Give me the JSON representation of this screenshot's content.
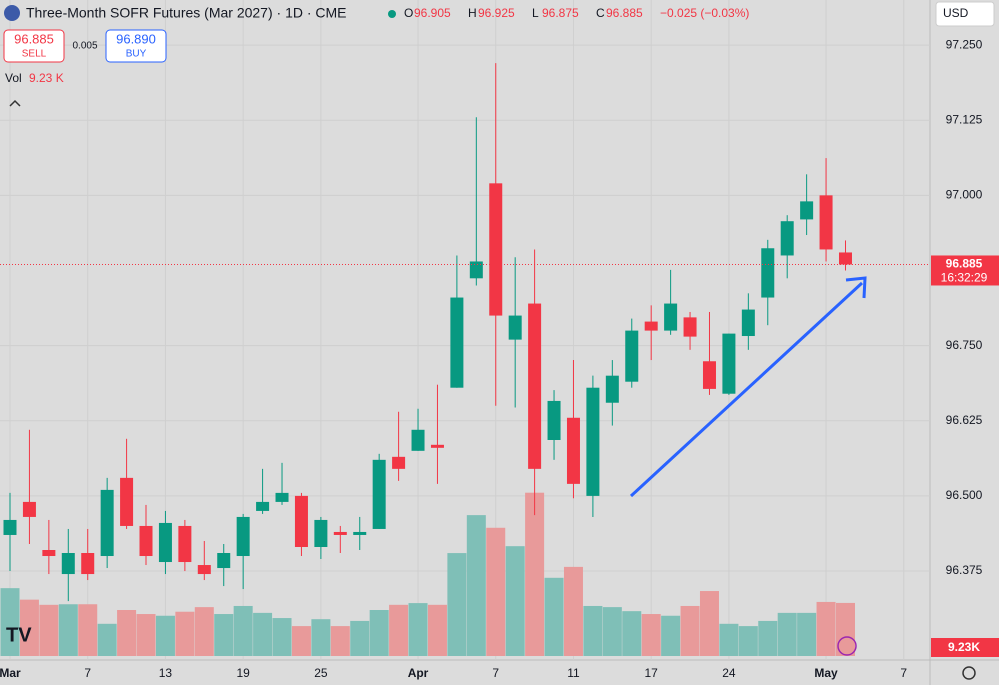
{
  "chart_data": {
    "type": "candlestick",
    "title": "Three-Month SOFR Futures (Mar 2027) · 1D · CME",
    "categories": [
      "Mar",
      null,
      null,
      null,
      "7",
      null,
      null,
      null,
      "13",
      null,
      null,
      null,
      "19",
      null,
      null,
      null,
      "25",
      null,
      null,
      null,
      null,
      "Apr",
      null,
      null,
      null,
      "7",
      null,
      null,
      null,
      "11",
      null,
      null,
      null,
      "17",
      null,
      null,
      null,
      "24",
      null,
      null,
      null,
      null,
      "May",
      null,
      null,
      null,
      "7"
    ],
    "open": [
      96.435,
      96.49,
      96.41,
      96.37,
      96.405,
      96.4,
      96.53,
      96.45,
      96.39,
      96.45,
      96.385,
      96.38,
      96.4,
      96.475,
      96.49,
      96.5,
      96.415,
      96.44,
      96.435,
      96.445,
      96.565,
      96.575,
      96.585,
      96.68,
      96.862,
      97.02,
      96.76,
      96.82,
      96.593,
      96.63,
      96.5,
      96.655,
      96.69,
      96.79,
      96.775,
      96.797,
      96.724,
      96.67,
      96.766,
      96.83,
      96.9,
      96.96,
      97.0,
      96.905,
      null,
      null,
      null
    ],
    "high": [
      96.505,
      96.61,
      96.46,
      96.445,
      96.445,
      96.53,
      96.595,
      96.485,
      96.475,
      96.46,
      96.425,
      96.42,
      96.47,
      96.545,
      96.555,
      96.505,
      96.465,
      96.45,
      96.465,
      96.57,
      96.64,
      96.645,
      96.685,
      96.9,
      97.13,
      97.22,
      96.897,
      96.91,
      96.676,
      96.726,
      96.7,
      96.726,
      96.795,
      96.817,
      96.876,
      96.806,
      96.806,
      96.77,
      96.837,
      96.926,
      96.967,
      97.035,
      97.062,
      96.925,
      null,
      null,
      null
    ],
    "low": [
      96.375,
      96.42,
      96.37,
      96.325,
      96.36,
      96.38,
      96.445,
      96.385,
      96.37,
      96.375,
      96.36,
      96.35,
      96.345,
      96.47,
      96.485,
      96.4,
      96.395,
      96.405,
      96.41,
      96.445,
      96.525,
      96.575,
      96.52,
      96.68,
      96.85,
      96.65,
      96.647,
      96.468,
      96.56,
      96.496,
      96.465,
      96.617,
      96.68,
      96.726,
      96.768,
      96.743,
      96.668,
      96.668,
      96.743,
      96.784,
      96.862,
      96.934,
      96.89,
      96.875,
      null,
      null,
      null
    ],
    "close": [
      96.46,
      96.465,
      96.4,
      96.405,
      96.37,
      96.51,
      96.45,
      96.4,
      96.455,
      96.39,
      96.37,
      96.405,
      96.465,
      96.49,
      96.505,
      96.415,
      96.46,
      96.435,
      96.44,
      96.56,
      96.545,
      96.61,
      96.58,
      96.83,
      96.89,
      96.8,
      96.8,
      96.545,
      96.658,
      96.52,
      96.68,
      96.7,
      96.775,
      96.775,
      96.82,
      96.765,
      96.678,
      96.77,
      96.81,
      96.912,
      96.957,
      96.99,
      96.91,
      96.885,
      null,
      null,
      null
    ],
    "volume": [
      11.8,
      9.8,
      8.9,
      9.0,
      9.0,
      5.6,
      8.0,
      7.3,
      7.0,
      7.7,
      8.5,
      7.3,
      8.7,
      7.5,
      6.6,
      5.2,
      6.4,
      5.2,
      6.1,
      8.0,
      8.9,
      9.2,
      8.9,
      17.9,
      24.5,
      22.3,
      19.1,
      28.4,
      13.6,
      15.5,
      8.7,
      8.5,
      7.8,
      7.3,
      7.0,
      8.7,
      11.3,
      5.6,
      5.2,
      6.1,
      7.5,
      7.5,
      9.4,
      9.23,
      null,
      null,
      null
    ],
    "up_color": "#089981",
    "down_color": "#f23645",
    "volume_up_color": "#7fbfb7",
    "volume_down_color": "#e89a9a",
    "ylim": [
      96.227,
      97.325
    ],
    "yticks": [
      {
        "value": 97.25,
        "label": "97.250"
      },
      {
        "value": 97.125,
        "label": "97.125"
      },
      {
        "value": 97.0,
        "label": "97.000"
      },
      {
        "value": 96.75,
        "label": "96.750"
      },
      {
        "value": 96.625,
        "label": "96.625"
      },
      {
        "value": 96.5,
        "label": "96.500"
      },
      {
        "value": 96.375,
        "label": "96.375"
      }
    ],
    "volume_lim": [
      0,
      40
    ],
    "grid": true
  },
  "ui": {
    "currency": "USD",
    "ohlc": [
      {
        "key": "O",
        "value": "96.905"
      },
      {
        "key": "H",
        "value": "96.925"
      },
      {
        "key": "L",
        "value": "96.875"
      },
      {
        "key": "C",
        "value": "96.885"
      }
    ],
    "change": "−0.025 (−0.03%)",
    "sell": {
      "price": "96.885",
      "label": "SELL"
    },
    "spread": "0.005",
    "buy": {
      "price": "96.890",
      "label": "BUY"
    },
    "vol": {
      "label": "Vol",
      "value": "9.23 K"
    },
    "last_price": "96.885",
    "countdown": "16:32:29",
    "volume_last": "9.23K"
  }
}
